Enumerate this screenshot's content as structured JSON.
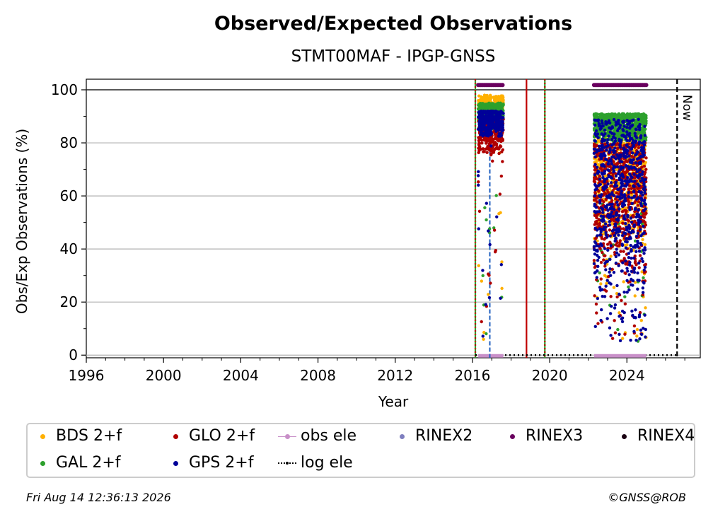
{
  "chart_data": {
    "type": "scatter",
    "title": "Observed/Expected Observations",
    "subtitle": "STMT00MAF - IPGP-GNSS",
    "xlabel": "Year",
    "ylabel": "Obs/Exp Observations (%)",
    "xlim": [
      1996,
      2027.8
    ],
    "ylim": [
      -1,
      104
    ],
    "x_ticks": [
      "1996",
      "2000",
      "2004",
      "2008",
      "2012",
      "2016",
      "2020",
      "2024"
    ],
    "y_ticks": [
      "0",
      "20",
      "40",
      "60",
      "80",
      "100"
    ],
    "grid": "horizontal",
    "legend_position": "below",
    "now_label": "Now",
    "now_year": 2026.6,
    "vertical_lines": [
      {
        "year": 2016.15,
        "color": "#2ca02c",
        "style": "solid"
      },
      {
        "year": 2016.15,
        "color": "#c00000",
        "style": "dotted"
      },
      {
        "year": 2018.8,
        "color": "#c00000",
        "style": "solid"
      },
      {
        "year": 2019.75,
        "color": "#2ca02c",
        "style": "solid"
      },
      {
        "year": 2019.75,
        "color": "#c00000",
        "style": "dotted"
      },
      {
        "year": 2026.6,
        "color": "#000000",
        "style": "dashed"
      }
    ],
    "series": [
      {
        "name": "BDS 2+f",
        "color": "#ffb000",
        "periods": [
          [
            2016.3,
            2017.6,
            85,
            98
          ],
          [
            2022.3,
            2025.0,
            40,
            85
          ]
        ]
      },
      {
        "name": "GAL 2+f",
        "color": "#2ca02c",
        "periods": [
          [
            2016.3,
            2017.6,
            85,
            95
          ],
          [
            2022.3,
            2025.0,
            80,
            91
          ]
        ]
      },
      {
        "name": "GLO 2+f",
        "color": "#b00000",
        "periods": [
          [
            2016.3,
            2017.6,
            75,
            90
          ],
          [
            2022.3,
            2025.0,
            30,
            80
          ]
        ]
      },
      {
        "name": "GPS 2+f",
        "color": "#000099",
        "periods": [
          [
            2016.3,
            2017.6,
            82,
            92
          ],
          [
            2022.3,
            2025.0,
            20,
            89
          ]
        ]
      }
    ],
    "rinex3_periods": [
      [
        2016.3,
        2017.6
      ],
      [
        2022.3,
        2025.0
      ]
    ],
    "obs_ele_periods": [
      [
        2016.3,
        2017.6
      ],
      [
        2022.3,
        2025.0
      ]
    ],
    "log_ele": {
      "from": 2016.15,
      "to": 2026.6,
      "value": 0
    }
  },
  "legend": {
    "items": [
      {
        "label": "BDS 2+f",
        "color": "#ffb000",
        "kind": "dot"
      },
      {
        "label": "GLO 2+f",
        "color": "#b00000",
        "kind": "dot"
      },
      {
        "label": "obs ele",
        "color": "#c88fc8",
        "kind": "line-dot"
      },
      {
        "label": "RINEX2",
        "color": "#7f7fbf",
        "kind": "dot"
      },
      {
        "label": "RINEX3",
        "color": "#6a005f",
        "kind": "dot"
      },
      {
        "label": "RINEX4",
        "color": "#1a0012",
        "kind": "dot"
      },
      {
        "label": "GAL 2+f",
        "color": "#2ca02c",
        "kind": "dot"
      },
      {
        "label": "GPS 2+f",
        "color": "#000099",
        "kind": "dot"
      },
      {
        "label": "log ele",
        "color": "#000000",
        "kind": "dotted-line"
      }
    ]
  },
  "footer": {
    "timestamp": "Fri Aug 14 12:36:13 2026",
    "credit": "©GNSS@ROB"
  }
}
